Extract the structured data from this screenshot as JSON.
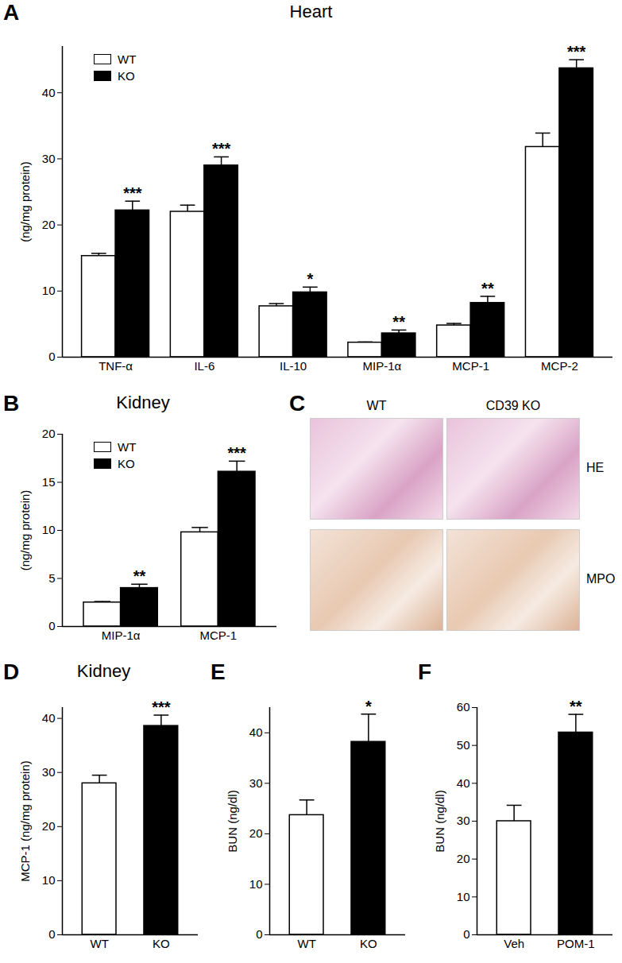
{
  "chart_data": [
    {
      "panel": "A",
      "type": "bar",
      "title": "Heart",
      "y_label": "(ng/mg protein)",
      "categories": [
        "TNF-α",
        "IL-6",
        "IL-10",
        "MIP-1α",
        "MCP-1",
        "MCP-2"
      ],
      "series": [
        {
          "name": "WT",
          "color": "#ffffff",
          "values": [
            15.3,
            22.0,
            7.7,
            2.2,
            4.8,
            31.8
          ],
          "errors": [
            0.4,
            1.0,
            0.4,
            0.1,
            0.3,
            2.1
          ]
        },
        {
          "name": "KO",
          "color": "#000000",
          "values": [
            22.2,
            29.0,
            9.8,
            3.6,
            8.2,
            43.7
          ],
          "errors": [
            1.4,
            1.3,
            0.8,
            0.5,
            1.0,
            1.3
          ],
          "significance": [
            "***",
            "***",
            "*",
            "**",
            "**",
            "***"
          ]
        }
      ],
      "ylim": [
        0,
        47
      ],
      "yticks": [
        0,
        10,
        20,
        30,
        40
      ],
      "legend": "top-left"
    },
    {
      "panel": "B",
      "type": "bar",
      "title": "Kidney",
      "y_label": "(ng/mg protein)",
      "categories": [
        "MIP-1α",
        "MCP-1"
      ],
      "series": [
        {
          "name": "WT",
          "color": "#ffffff",
          "values": [
            2.5,
            9.8
          ],
          "errors": [
            0.1,
            0.5
          ]
        },
        {
          "name": "KO",
          "color": "#000000",
          "values": [
            4.0,
            16.1
          ],
          "errors": [
            0.4,
            1.1
          ],
          "significance": [
            "**",
            "***"
          ]
        }
      ],
      "ylim": [
        0,
        20
      ],
      "yticks": [
        0,
        5,
        10,
        15,
        20
      ],
      "legend": "top-left"
    },
    {
      "panel": "C",
      "type": "image",
      "columns": [
        "WT",
        "CD39 KO"
      ],
      "rows": [
        "HE",
        "MPO"
      ]
    },
    {
      "panel": "D",
      "type": "bar",
      "title": "Kidney",
      "y_label": "MCP-1 (ng/mg protein)",
      "categories": [
        "WT",
        "KO"
      ],
      "values": [
        28.0,
        38.6
      ],
      "errors": [
        1.5,
        2.0
      ],
      "significance": [
        null,
        "***"
      ],
      "colors": [
        "#ffffff",
        "#000000"
      ],
      "ylim": [
        0,
        42
      ],
      "yticks": [
        0,
        10,
        20,
        30,
        40
      ]
    },
    {
      "panel": "E",
      "type": "bar",
      "y_label": "BUN (ng/dl)",
      "categories": [
        "WT",
        "KO"
      ],
      "values": [
        23.7,
        38.2
      ],
      "errors": [
        3.0,
        5.5
      ],
      "significance": [
        null,
        "*"
      ],
      "colors": [
        "#ffffff",
        "#000000"
      ],
      "ylim": [
        0,
        45
      ],
      "yticks": [
        0,
        10,
        20,
        30,
        40
      ]
    },
    {
      "panel": "F",
      "type": "bar",
      "y_label": "BUN (ng/dl)",
      "categories": [
        "Veh",
        "POM-1"
      ],
      "values": [
        30.0,
        53.4
      ],
      "errors": [
        4.2,
        4.8
      ],
      "significance": [
        null,
        "**"
      ],
      "colors": [
        "#ffffff",
        "#000000"
      ],
      "ylim": [
        0,
        60
      ],
      "yticks": [
        0,
        10,
        20,
        30,
        40,
        50,
        60
      ]
    }
  ]
}
